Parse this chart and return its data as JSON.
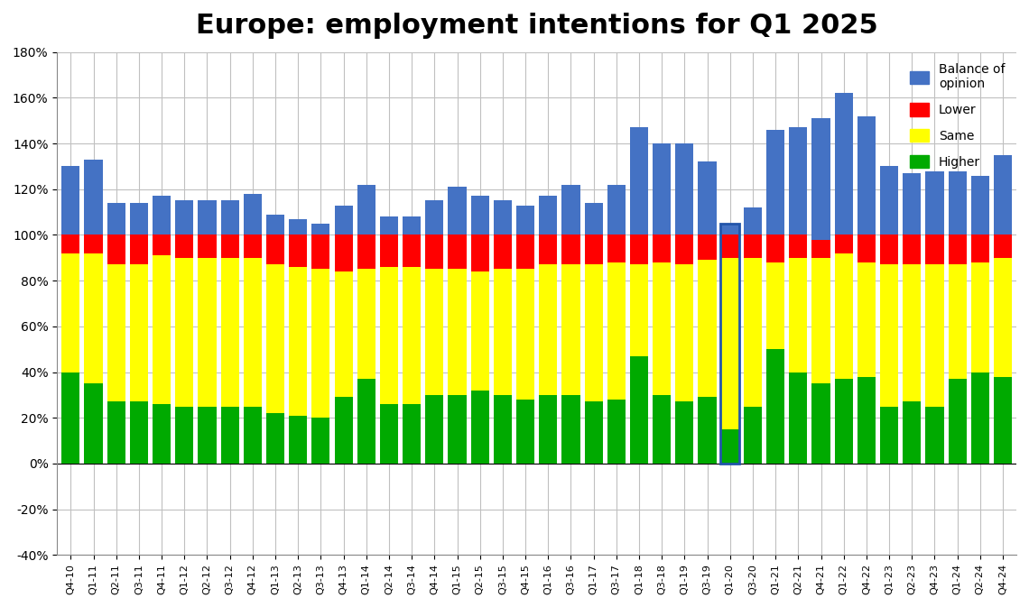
{
  "title": "Europe: employment intentions for Q1 2025",
  "categories": [
    "Q4-10",
    "Q1-11",
    "Q2-11",
    "Q3-11",
    "Q4-11",
    "Q1-12",
    "Q2-12",
    "Q3-12",
    "Q4-12",
    "Q1-13",
    "Q2-13",
    "Q3-13",
    "Q4-13",
    "Q1-14",
    "Q2-14",
    "Q3-14",
    "Q4-14",
    "Q1-15",
    "Q2-15",
    "Q3-15",
    "Q4-15",
    "Q1-16",
    "Q3-16",
    "Q1-17",
    "Q3-17",
    "Q1-18",
    "Q3-18",
    "Q1-19",
    "Q3-19",
    "Q1-20",
    "Q3-20",
    "Q1-21",
    "Q2-21",
    "Q4-21",
    "Q1-22",
    "Q4-22",
    "Q1-23",
    "Q2-23",
    "Q4-23",
    "Q1-24",
    "Q2-24",
    "Q4-24"
  ],
  "higher": [
    40,
    35,
    27,
    27,
    26,
    25,
    25,
    25,
    25,
    22,
    21,
    20,
    29,
    37,
    26,
    26,
    30,
    30,
    32,
    30,
    28,
    30,
    30,
    27,
    28,
    47,
    30,
    27,
    29,
    15,
    25,
    50,
    40,
    35,
    37,
    38,
    25,
    27,
    25,
    37,
    40,
    38
  ],
  "same": [
    52,
    57,
    60,
    60,
    65,
    65,
    65,
    65,
    65,
    65,
    65,
    65,
    55,
    48,
    60,
    60,
    55,
    55,
    52,
    55,
    57,
    57,
    57,
    60,
    60,
    40,
    58,
    60,
    60,
    75,
    65,
    38,
    50,
    55,
    55,
    50,
    62,
    60,
    62,
    50,
    48,
    52
  ],
  "lower": [
    8,
    8,
    13,
    13,
    9,
    10,
    10,
    10,
    10,
    13,
    14,
    15,
    16,
    15,
    14,
    14,
    15,
    15,
    16,
    15,
    15,
    13,
    13,
    13,
    12,
    13,
    12,
    13,
    11,
    10,
    10,
    12,
    10,
    8,
    8,
    12,
    13,
    13,
    13,
    13,
    12,
    10
  ],
  "balance": [
    30,
    33,
    14,
    14,
    17,
    15,
    15,
    15,
    18,
    9,
    7,
    5,
    13,
    22,
    8,
    8,
    15,
    21,
    17,
    15,
    13,
    17,
    22,
    14,
    22,
    47,
    40,
    40,
    32,
    5,
    12,
    46,
    47,
    53,
    62,
    52,
    30,
    27,
    28,
    28,
    26,
    35
  ],
  "colors": {
    "higher": "#00aa00",
    "same": "#ffff00",
    "lower": "#ff0000",
    "balance": "#4472c4"
  },
  "special_bar_idx": 29,
  "ylim": [
    -40,
    180
  ],
  "yticks": [
    -40,
    -20,
    0,
    20,
    40,
    60,
    80,
    100,
    120,
    140,
    160,
    180
  ],
  "background_color": "#ffffff",
  "grid_color": "#c0c0c0"
}
